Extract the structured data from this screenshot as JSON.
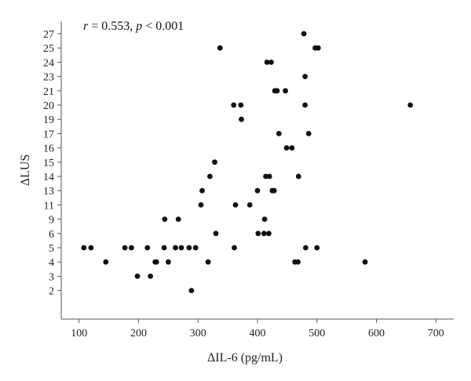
{
  "chart_data": {
    "type": "scatter",
    "annotation": {
      "r_label": "r",
      "r_value": " = 0.553, ",
      "p_label": "p",
      "p_value": " < 0.001"
    },
    "xlabel": "ΔIL-6 (pg/mL)",
    "ylabel": "ΔLUS",
    "xlim": [
      70,
      730
    ],
    "x_ticks": [
      100,
      200,
      300,
      400,
      500,
      600,
      700
    ],
    "y_tick_labels": [
      "2",
      "3",
      "4",
      "5",
      "6",
      "9",
      "11",
      "13",
      "14",
      "15",
      "16",
      "17",
      "19",
      "20",
      "21",
      "23",
      "24",
      "25",
      "27"
    ],
    "grid": false,
    "legend": "none",
    "points": [
      {
        "x": 108,
        "y": "5"
      },
      {
        "x": 120,
        "y": "5"
      },
      {
        "x": 145,
        "y": "4"
      },
      {
        "x": 177,
        "y": "5"
      },
      {
        "x": 188,
        "y": "5"
      },
      {
        "x": 198,
        "y": "3"
      },
      {
        "x": 215,
        "y": "5"
      },
      {
        "x": 220,
        "y": "3"
      },
      {
        "x": 228,
        "y": "4"
      },
      {
        "x": 230,
        "y": "4"
      },
      {
        "x": 243,
        "y": "5"
      },
      {
        "x": 244,
        "y": "9"
      },
      {
        "x": 250,
        "y": "4"
      },
      {
        "x": 262,
        "y": "5"
      },
      {
        "x": 267,
        "y": "9"
      },
      {
        "x": 272,
        "y": "5"
      },
      {
        "x": 285,
        "y": "5"
      },
      {
        "x": 289,
        "y": "2"
      },
      {
        "x": 296,
        "y": "5"
      },
      {
        "x": 305,
        "y": "11"
      },
      {
        "x": 307,
        "y": "13"
      },
      {
        "x": 317,
        "y": "4"
      },
      {
        "x": 320,
        "y": "14"
      },
      {
        "x": 328,
        "y": "15"
      },
      {
        "x": 330,
        "y": "6"
      },
      {
        "x": 337,
        "y": "25"
      },
      {
        "x": 360,
        "y": "20"
      },
      {
        "x": 361,
        "y": "5"
      },
      {
        "x": 363,
        "y": "11"
      },
      {
        "x": 372,
        "y": "20"
      },
      {
        "x": 373,
        "y": "19"
      },
      {
        "x": 387,
        "y": "11"
      },
      {
        "x": 400,
        "y": "13"
      },
      {
        "x": 401,
        "y": "6"
      },
      {
        "x": 411,
        "y": "6"
      },
      {
        "x": 412,
        "y": "9"
      },
      {
        "x": 414,
        "y": "14"
      },
      {
        "x": 416,
        "y": "24"
      },
      {
        "x": 420,
        "y": "14"
      },
      {
        "x": 419,
        "y": "6"
      },
      {
        "x": 423,
        "y": "24"
      },
      {
        "x": 425,
        "y": "13"
      },
      {
        "x": 428,
        "y": "13"
      },
      {
        "x": 429,
        "y": "21"
      },
      {
        "x": 433,
        "y": "21"
      },
      {
        "x": 436,
        "y": "17"
      },
      {
        "x": 447,
        "y": "21"
      },
      {
        "x": 449,
        "y": "16"
      },
      {
        "x": 458,
        "y": "16"
      },
      {
        "x": 463,
        "y": "4"
      },
      {
        "x": 468,
        "y": "4"
      },
      {
        "x": 469,
        "y": "14"
      },
      {
        "x": 478,
        "y": "27"
      },
      {
        "x": 480,
        "y": "23"
      },
      {
        "x": 480,
        "y": "20"
      },
      {
        "x": 481,
        "y": "5"
      },
      {
        "x": 486,
        "y": "17"
      },
      {
        "x": 497,
        "y": "25"
      },
      {
        "x": 500,
        "y": "5"
      },
      {
        "x": 502,
        "y": "25"
      },
      {
        "x": 581,
        "y": "4"
      },
      {
        "x": 657,
        "y": "20"
      }
    ]
  }
}
